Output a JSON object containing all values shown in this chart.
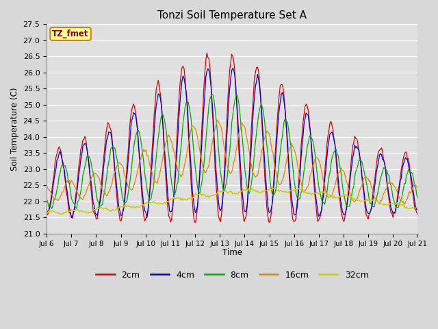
{
  "title": "Tonzi Soil Temperature Set A",
  "xlabel": "Time",
  "ylabel": "Soil Temperature (C)",
  "annotation": "TZ_fmet",
  "ylim": [
    21.0,
    27.5
  ],
  "x_tick_labels": [
    "Jul 6",
    "Jul 7",
    "Jul 8",
    "Jul 9",
    "Jul 10",
    "Jul 11",
    "Jul 12",
    "Jul 13",
    "Jul 14",
    "Jul 15",
    "Jul 16",
    "Jul 17",
    "Jul 18",
    "Jul 19",
    "Jul 20",
    "Jul 21"
  ],
  "colors": {
    "2cm": "#dd0000",
    "4cm": "#0000dd",
    "8cm": "#00aa00",
    "16cm": "#dd8800",
    "32cm": "#cccc00"
  },
  "fig_bg": "#d8d8d8",
  "plot_bg": "#e0e0e0",
  "annotation_bg": "#ffff99",
  "annotation_border": "#cc8800",
  "annotation_text_color": "#880000"
}
